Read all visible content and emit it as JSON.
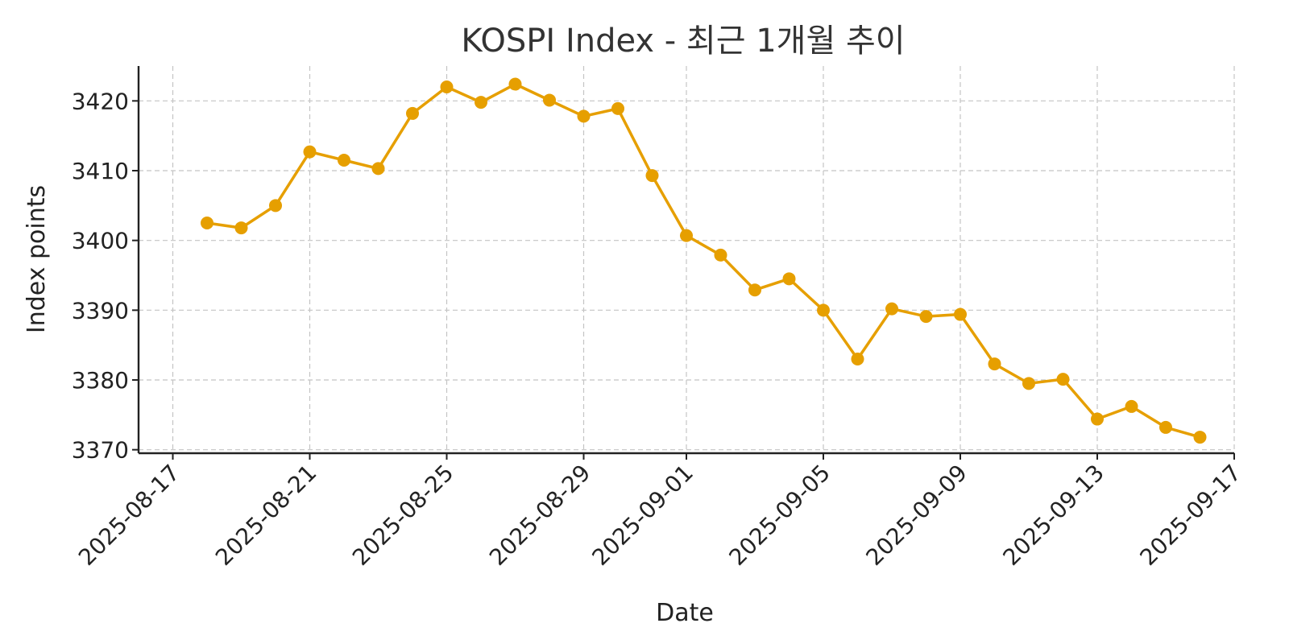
{
  "colors": {
    "series": "#E69F00",
    "grid": "#c4c4c4",
    "axis": "#222222"
  },
  "chart_data": {
    "type": "line",
    "title": "KOSPI Index - 최근 1개월 추이",
    "xlabel": "Date",
    "ylabel": "Index points",
    "grid": true,
    "xlim": [
      "2025-08-16",
      "2025-09-17"
    ],
    "ylim": [
      3369.5,
      3425
    ],
    "x_ticks": [
      "2025-08-17",
      "2025-08-21",
      "2025-08-25",
      "2025-08-29",
      "2025-09-01",
      "2025-09-05",
      "2025-09-09",
      "2025-09-13",
      "2025-09-17"
    ],
    "y_ticks": [
      3370,
      3380,
      3390,
      3400,
      3410,
      3420
    ],
    "series": [
      {
        "x": [
          "2025-08-18",
          "2025-08-19",
          "2025-08-20",
          "2025-08-21",
          "2025-08-22",
          "2025-08-23",
          "2025-08-24",
          "2025-08-25",
          "2025-08-26",
          "2025-08-27",
          "2025-08-28",
          "2025-08-29",
          "2025-08-30",
          "2025-08-31",
          "2025-09-01",
          "2025-09-02",
          "2025-09-03",
          "2025-09-04",
          "2025-09-05",
          "2025-09-06",
          "2025-09-07",
          "2025-09-08",
          "2025-09-09",
          "2025-09-10",
          "2025-09-11",
          "2025-09-12",
          "2025-09-13",
          "2025-09-14",
          "2025-09-15",
          "2025-09-16"
        ],
        "values": [
          3402.5,
          3401.8,
          3405.0,
          3412.7,
          3411.5,
          3410.3,
          3418.2,
          3422.0,
          3419.8,
          3422.4,
          3420.1,
          3417.8,
          3418.9,
          3409.3,
          3400.7,
          3397.9,
          3392.9,
          3394.5,
          3390.0,
          3383.0,
          3390.2,
          3389.1,
          3389.4,
          3382.3,
          3379.5,
          3380.1,
          3374.4,
          3376.2,
          3373.2,
          3371.8
        ]
      }
    ]
  }
}
